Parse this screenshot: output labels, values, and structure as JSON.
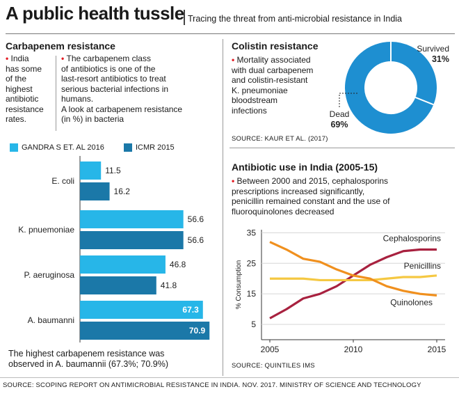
{
  "header": {
    "title": "A public health tussle",
    "subtitle": "Tracing the threat from anti-microbial resistance in India"
  },
  "carbapenem": {
    "title": "Carbapenem resistance",
    "bullet1": [
      "India",
      "has some",
      "of the",
      "highest",
      "antibiotic",
      "resistance",
      "rates."
    ],
    "bullet2": [
      "The carbapenem class",
      "of antibiotics is one of the",
      "last-resort antibiotics to treat",
      "serious bacterial infections in",
      "humans.",
      "A look at carbapenem resistance",
      "(in %) in bacteria"
    ],
    "footnote": [
      "The highest carbapenem resistance was",
      "observed in A. baumannii (67.3%; 70.9%)"
    ]
  },
  "colistin": {
    "title": "Colistin resistance",
    "text": [
      "Mortality associated",
      "with dual carbapenem",
      "and colistin-resistant",
      "K. pneumoniae",
      "bloodstream",
      "infections"
    ],
    "source": "SOURCE: KAUR ET AL. (2017)"
  },
  "antibiotic_use": {
    "title": "Antibiotic use in India (2005-15)",
    "text": [
      "Between 2000 and 2015, cephalosporins",
      "prescriptions increased significantly,",
      "penicillin remained constant and the use of",
      "fluoroquinolones decreased"
    ],
    "source": "SOURCE: QUINTILES IMS"
  },
  "footer": {
    "source": "SOURCE: SCOPING REPORT ON ANTIMICROBIAL RESISTANCE IN INDIA. NOV. 2017. MINISTRY OF SCIENCE AND TECHNOLOGY"
  },
  "colors": {
    "gandra": "#27b6e8",
    "icmr": "#1b78a8",
    "donut": "#1e8fd1",
    "cephalosporins": "#a8213f",
    "penicillins": "#f5c842",
    "quinolones": "#f0901e",
    "bullet": "#e31b23"
  },
  "chart_data": [
    {
      "type": "bar",
      "orientation": "horizontal",
      "categories": [
        "E. coli",
        "K. pnuemoniae",
        "P. aeruginosa",
        "A. baumanni"
      ],
      "series": [
        {
          "name": "GANDRA S ET. AL 2016",
          "values": [
            11.5,
            56.6,
            46.8,
            67.3
          ]
        },
        {
          "name": "ICMR 2015",
          "values": [
            16.2,
            56.6,
            41.8,
            70.9
          ]
        }
      ],
      "value_labels": [
        [
          "11.5",
          "56.6",
          "46.8",
          "67.3"
        ],
        [
          "16.2",
          "56.6",
          "41.8",
          "70.9"
        ]
      ],
      "xlim": [
        0,
        75
      ]
    },
    {
      "type": "pie",
      "donut": true,
      "slices": [
        {
          "label": "Survived",
          "value": 31,
          "display": "31%"
        },
        {
          "label": "Dead",
          "value": 69,
          "display": "69%"
        }
      ]
    },
    {
      "type": "line",
      "ylabel": "% Consumption",
      "xlim": [
        2004.5,
        2015.5
      ],
      "ylim": [
        0,
        36
      ],
      "yticks": [
        5,
        15,
        25,
        35
      ],
      "xticks": [
        2005,
        2010,
        2015
      ],
      "series": [
        {
          "name": "Cephalosporins",
          "x": [
            2005,
            2006,
            2007,
            2008,
            2009,
            2010,
            2011,
            2012,
            2013,
            2014,
            2015
          ],
          "values": [
            7,
            10,
            13.5,
            15,
            17.5,
            21,
            24.5,
            27,
            29,
            29.5,
            29.5
          ]
        },
        {
          "name": "Penicillins",
          "x": [
            2005,
            2006,
            2007,
            2008,
            2009,
            2010,
            2011,
            2012,
            2013,
            2014,
            2015
          ],
          "values": [
            20,
            20,
            20,
            19.5,
            19.5,
            19.5,
            19.5,
            20,
            20.5,
            20.5,
            21
          ]
        },
        {
          "name": "Quinolones",
          "x": [
            2005,
            2006,
            2007,
            2008,
            2009,
            2010,
            2011,
            2012,
            2013,
            2014,
            2015
          ],
          "values": [
            32,
            29.5,
            26.5,
            25.5,
            23,
            21,
            20,
            17.5,
            16,
            15,
            14.5
          ]
        }
      ]
    }
  ]
}
